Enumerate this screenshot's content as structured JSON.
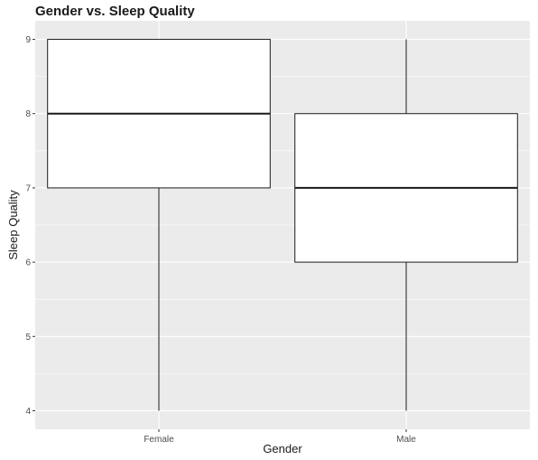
{
  "chart_data": {
    "type": "boxplot",
    "title": "Gender vs. Sleep Quality",
    "xlabel": "Gender",
    "ylabel": "Sleep Quality",
    "categories": [
      "Female",
      "Male"
    ],
    "boxes": [
      {
        "category": "Female",
        "min": 4,
        "q1": 7,
        "median": 8,
        "q3": 9,
        "max": 9
      },
      {
        "category": "Male",
        "min": 4,
        "q1": 6,
        "median": 7,
        "q3": 8,
        "max": 9
      }
    ],
    "y_ticks": [
      4,
      5,
      6,
      7,
      8,
      9
    ],
    "ylim": [
      3.75,
      9.25
    ],
    "grid": true,
    "panel_color": "#ebebeb",
    "grid_color": "#ffffff",
    "box_fill": "#ffffff",
    "line_color": "#1a1a1a"
  }
}
